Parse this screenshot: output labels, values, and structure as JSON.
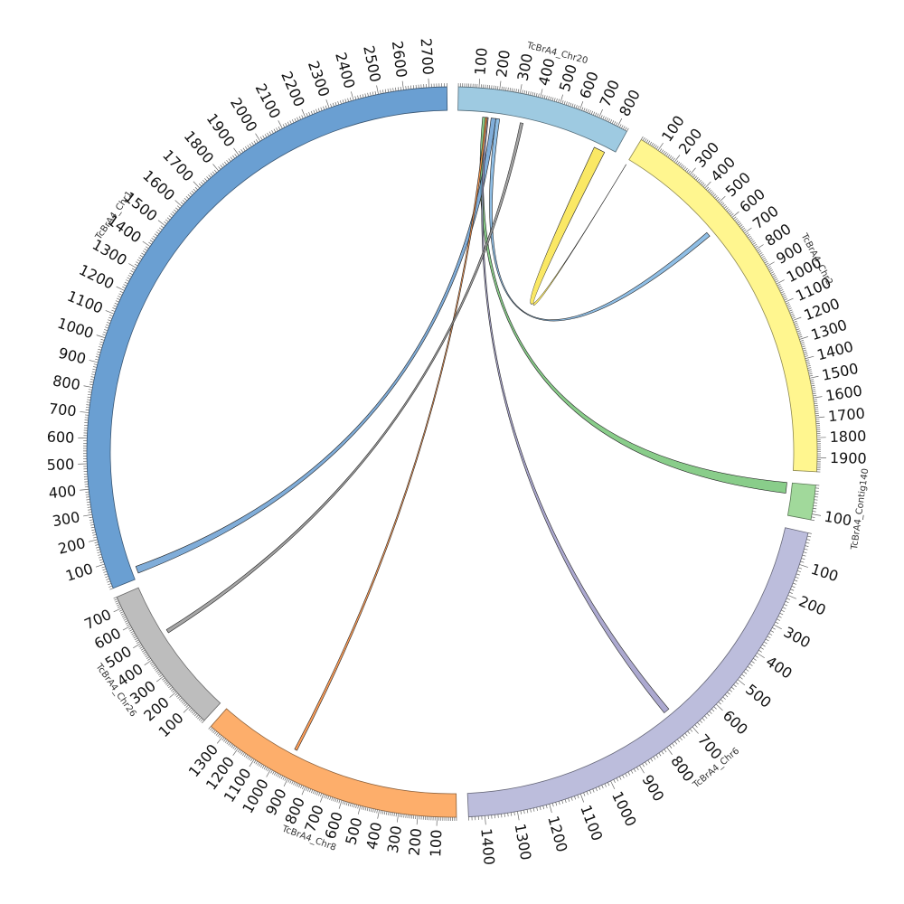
{
  "circos": {
    "chromosomes": [
      {
        "id": "chr20",
        "name": "TcBrA4_Chr20",
        "length": 850,
        "color": "#9ecae1",
        "start_deg": 1.0,
        "end_deg": 28.6
      },
      {
        "id": "chr2",
        "name": "TcBrA4_Chr2",
        "length": 1970,
        "color": "#fff68f",
        "start_deg": 31.2,
        "end_deg": 93.1
      },
      {
        "id": "contig140",
        "name": "TcBrA4_Contig140",
        "length": 120,
        "color": "#a1d99b",
        "start_deg": 95.2,
        "end_deg": 100.7
      },
      {
        "id": "chr6",
        "name": "TcBrA4_Chr6",
        "length": 1450,
        "color": "#bcbddc",
        "start_deg": 102.8,
        "end_deg": 177.4
      },
      {
        "id": "chr8",
        "name": "TcBrA4_Chr8",
        "length": 1380,
        "color": "#fdae6b",
        "start_deg": 179.3,
        "end_deg": 221.3
      },
      {
        "id": "chr26",
        "name": "TcBrA4_Chr26",
        "length": 760,
        "color": "#bdbdbd",
        "start_deg": 222.7,
        "end_deg": 246.6
      },
      {
        "id": "chr1",
        "name": "TcBrA4_Chr1",
        "length": 2770,
        "color": "#6a9fd2",
        "start_deg": 248.1,
        "end_deg": 359.2
      }
    ],
    "links": [
      {
        "color": "#f9e44a",
        "a": {
          "chr": "chr20",
          "start": 740,
          "end": 800
        },
        "b": {
          "chr": "chr2",
          "start": 0,
          "end": 0
        }
      },
      {
        "color": "#7bb3e0",
        "a": {
          "chr": "chr20",
          "start": 200,
          "end": 220
        },
        "b": {
          "chr": "chr2",
          "start": 575,
          "end": 600
        }
      },
      {
        "color": "#74c476",
        "a": {
          "chr": "chr20",
          "start": 130,
          "end": 150
        },
        "b": {
          "chr": "contig140",
          "start": 0,
          "end": 40
        }
      },
      {
        "color": "#6a9fd2",
        "a": {
          "chr": "chr20",
          "start": 175,
          "end": 200
        },
        "b": {
          "chr": "chr1",
          "start": 20,
          "end": 50
        }
      },
      {
        "color": "#9e9ac8",
        "a": {
          "chr": "chr20",
          "start": 150,
          "end": 160
        },
        "b": {
          "chr": "chr6",
          "start": 720,
          "end": 740
        }
      },
      {
        "color": "#fd8d3c",
        "a": {
          "chr": "chr20",
          "start": 145,
          "end": 155
        },
        "b": {
          "chr": "chr8",
          "start": 925,
          "end": 940
        }
      },
      {
        "color": "#969696",
        "a": {
          "chr": "chr20",
          "start": 330,
          "end": 345
        },
        "b": {
          "chr": "chr26",
          "start": 470,
          "end": 490
        }
      }
    ]
  }
}
